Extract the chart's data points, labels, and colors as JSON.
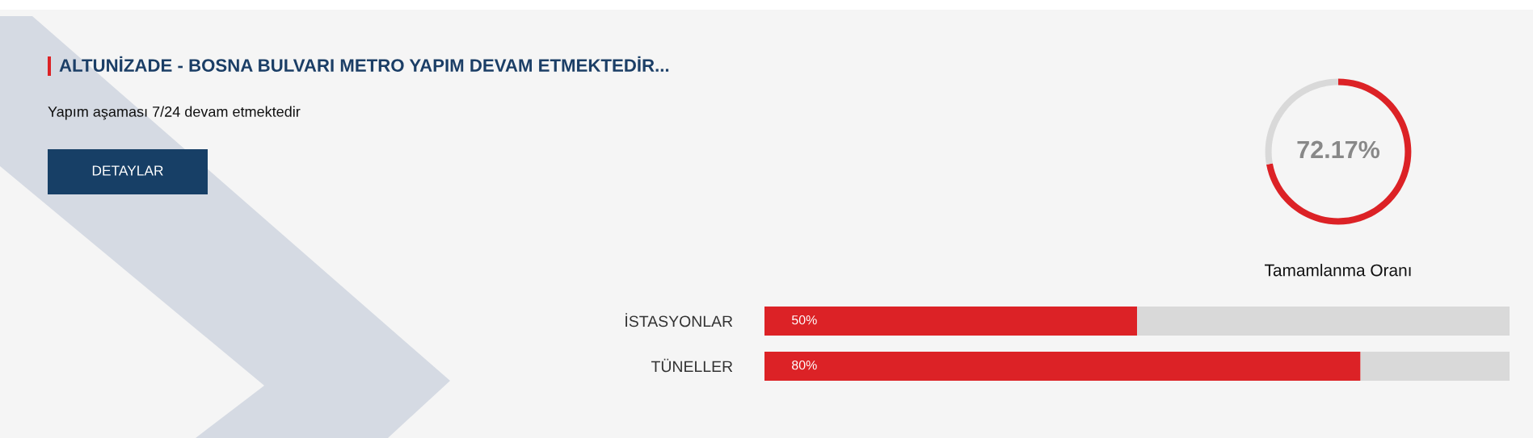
{
  "chart_data": [
    {
      "type": "other",
      "title": "ALTUNİZADE - BOSNA BULVARI METRO YAPIM DEVAM ETMEKTEDİR...",
      "subtitle": "Yapım aşaması 7/24 devam etmektedir",
      "annotations": [
        "DETAYLAR"
      ]
    },
    {
      "type": "donut",
      "title": "Tamamlanma Oranı",
      "values": [
        72.17,
        27.83
      ],
      "colors": [
        "#dc2226",
        "#d9d9d9"
      ],
      "value_labels": [
        "72.17%",
        null
      ]
    },
    {
      "type": "bar",
      "orientation": "horizontal",
      "stacked": true,
      "categories": [
        "İSTASYONLAR",
        "TÜNELLER"
      ],
      "xlim": [
        0,
        100
      ],
      "tick_labels": "y",
      "series": [
        {
          "color": "#dc2226",
          "values": [
            50,
            80
          ],
          "value_labels": [
            "50%",
            "80%"
          ]
        },
        {
          "color": "#d9d9d9",
          "values": [
            50,
            20
          ]
        }
      ]
    }
  ]
}
